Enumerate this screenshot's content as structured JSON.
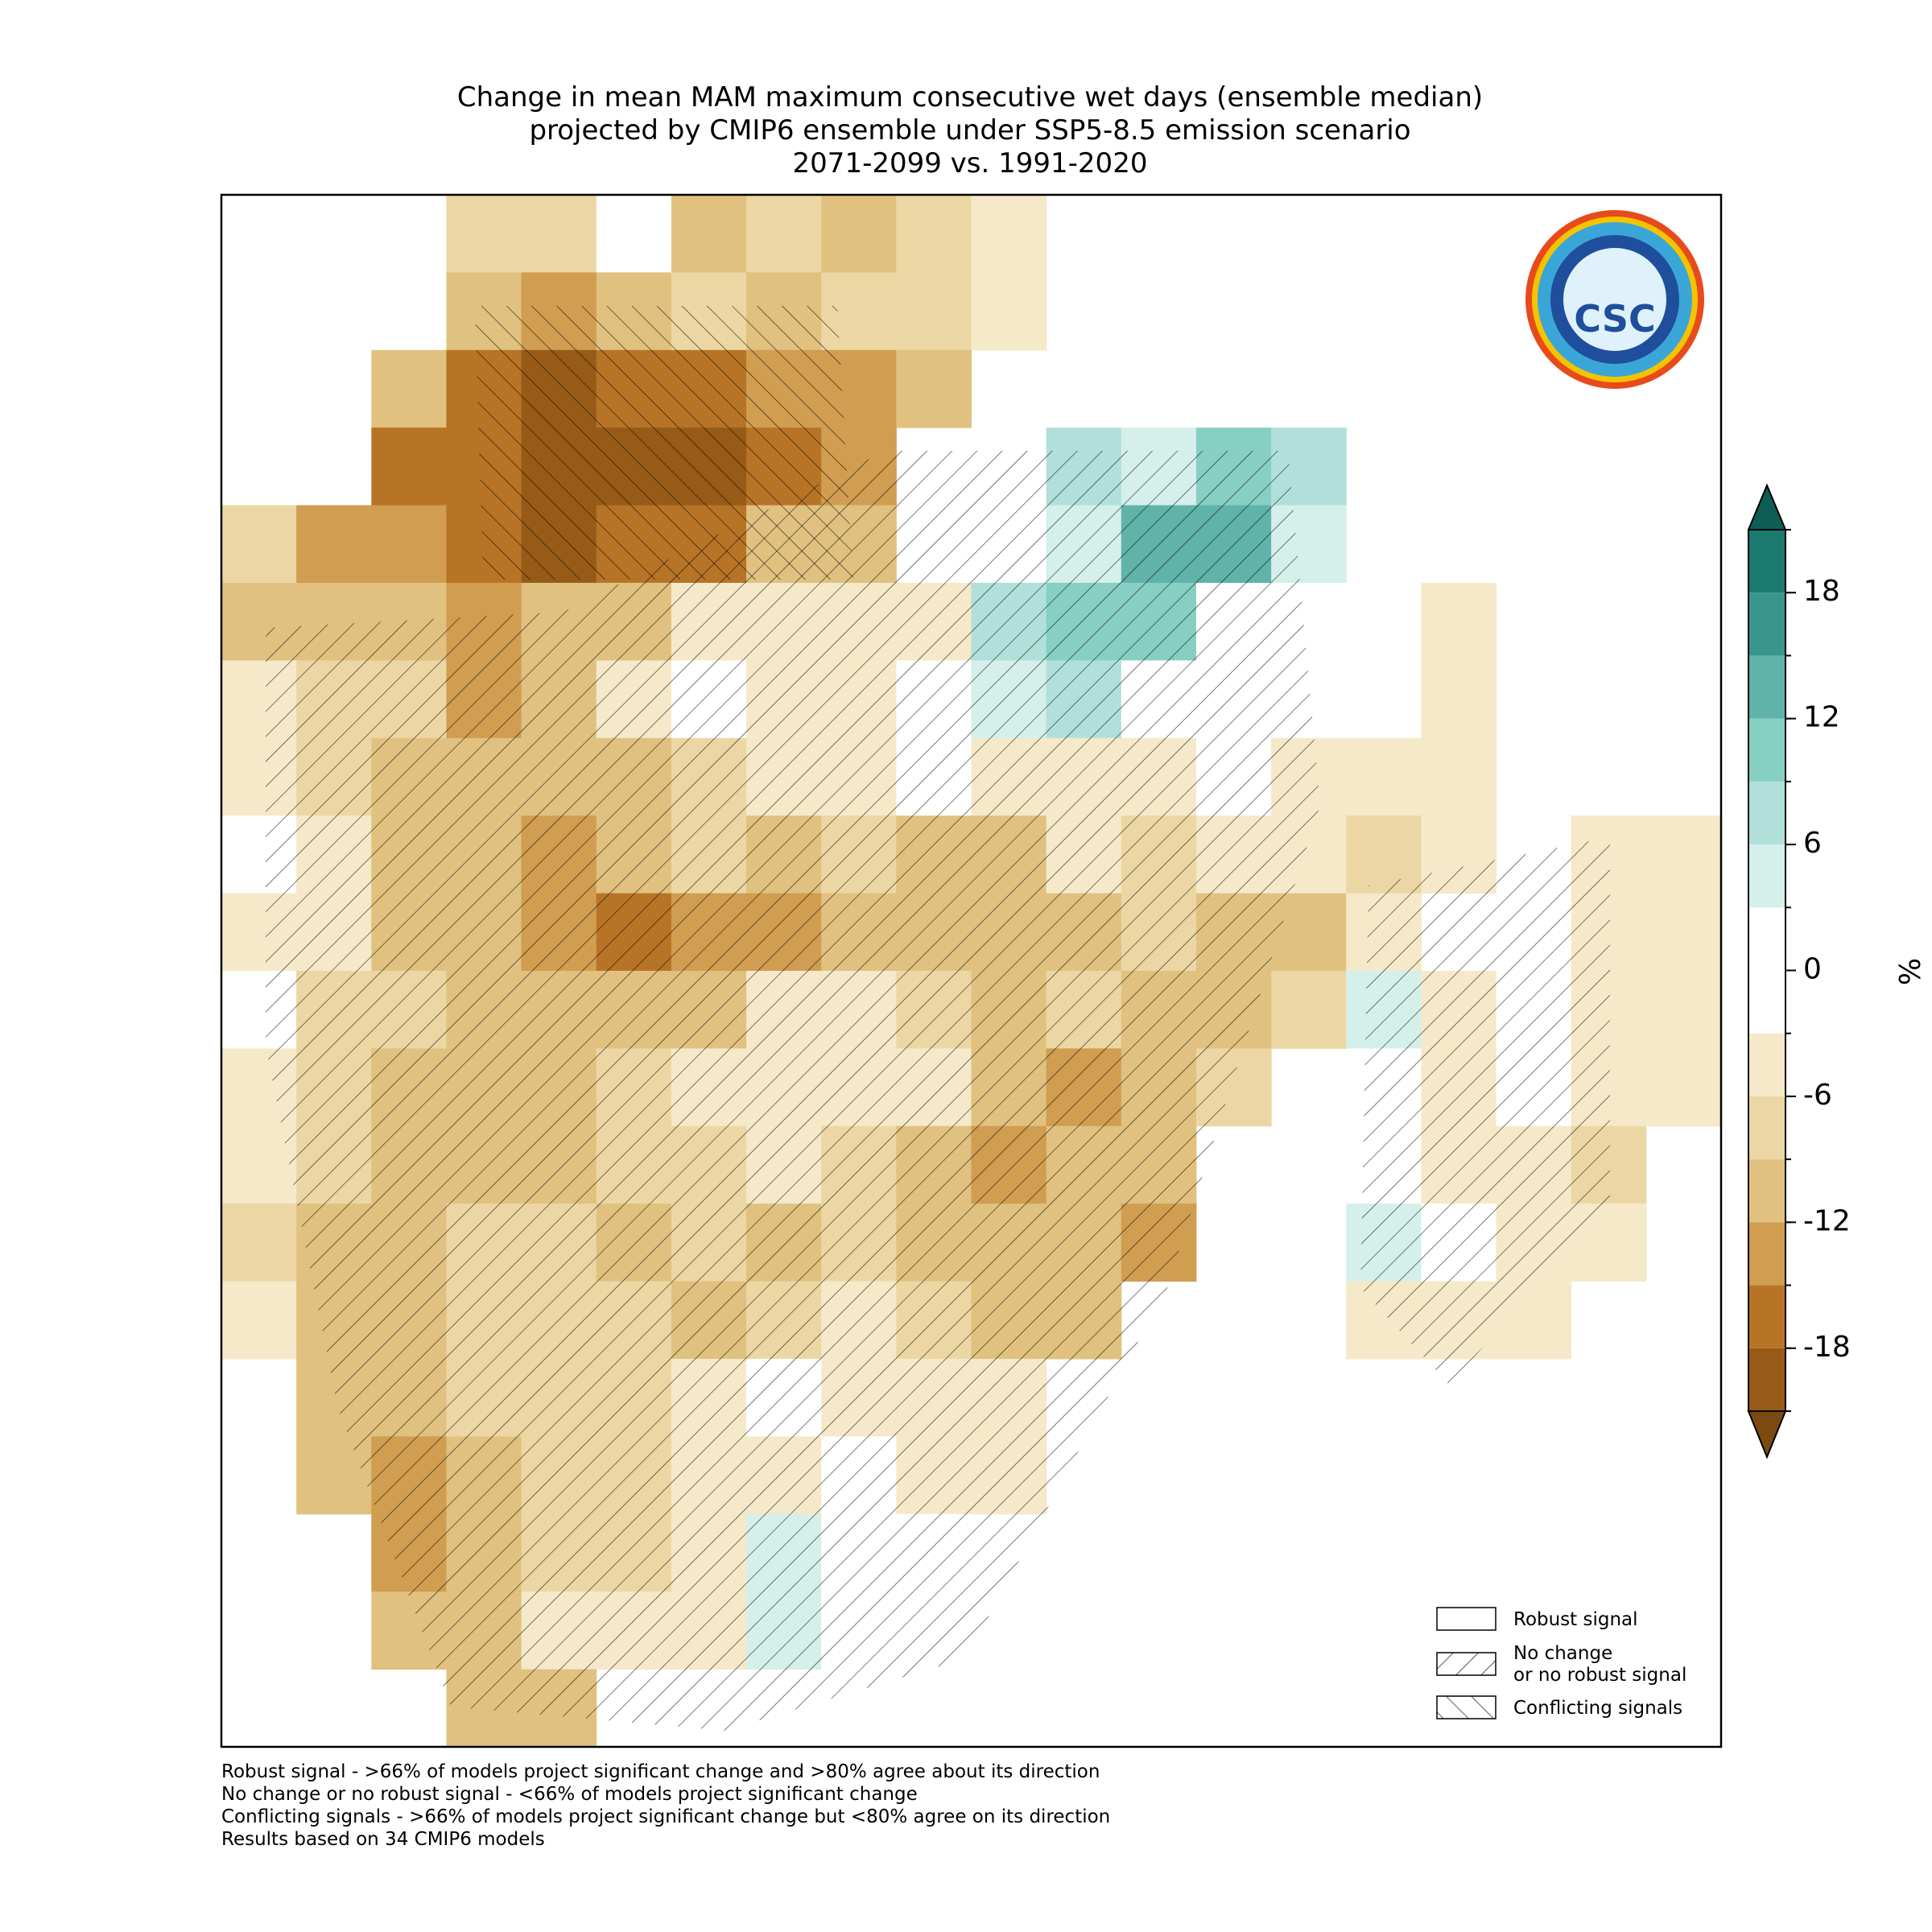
{
  "header": {
    "title": [
      "Change in mean MAM maximum consecutive wet days (ensemble median)",
      "projected by CMIP6 ensemble under SSP5-8.5 emission scenario",
      "2071-2099 vs. 1991-2020"
    ]
  },
  "map": {
    "cells": [
      [
        null,
        null,
        null,
        -8,
        -8,
        -2,
        -10,
        -8,
        -10,
        -8,
        -5,
        null,
        null,
        null,
        null,
        null,
        null,
        null,
        null,
        null
      ],
      [
        null,
        null,
        null,
        -10,
        -14,
        -12,
        -8,
        -10,
        -8,
        -8,
        -5,
        null,
        null,
        null,
        null,
        null,
        null,
        null,
        null,
        null
      ],
      [
        null,
        null,
        -10,
        -18,
        -20,
        -16,
        -18,
        -14,
        -14,
        -10,
        null,
        null,
        null,
        null,
        null,
        null,
        null,
        null,
        null,
        null
      ],
      [
        null,
        null,
        -16,
        -16,
        -20,
        -20,
        -20,
        -16,
        -14,
        null,
        0,
        6,
        3,
        9,
        6,
        null,
        null,
        null,
        null,
        null
      ],
      [
        -8,
        -14,
        -14,
        -16,
        -20,
        -18,
        -16,
        -10,
        -12,
        null,
        0,
        3,
        12,
        12,
        3,
        null,
        null,
        null,
        null,
        null
      ],
      [
        -12,
        -10,
        -12,
        -14,
        -10,
        -12,
        -6,
        -6,
        -6,
        -4,
        6,
        9,
        9,
        0,
        0,
        null,
        -6,
        null,
        null,
        null
      ],
      [
        -4,
        -8,
        -8,
        -14,
        -12,
        -4,
        -2,
        -6,
        -4,
        -2,
        3,
        6,
        0,
        -2,
        0,
        null,
        -6,
        null,
        null,
        null
      ],
      [
        -6,
        -8,
        -10,
        -12,
        -12,
        -10,
        -8,
        -6,
        -4,
        -2,
        -6,
        -6,
        -6,
        -2,
        -4,
        -6,
        -6,
        null,
        null,
        null
      ],
      [
        -2,
        -6,
        -10,
        -12,
        -14,
        -10,
        -8,
        -10,
        -8,
        -12,
        -10,
        -6,
        -8,
        -6,
        -6,
        -8,
        -4,
        null,
        -4,
        -4
      ],
      [
        -6,
        -6,
        -10,
        -12,
        -14,
        -16,
        -14,
        -14,
        -12,
        -10,
        -12,
        -10,
        -8,
        -12,
        -10,
        -6,
        null,
        null,
        -6,
        -6
      ],
      [
        -2,
        -8,
        -8,
        -10,
        -12,
        -12,
        -10,
        -6,
        -6,
        -8,
        -10,
        -8,
        -10,
        -12,
        -8,
        3,
        -4,
        -2,
        -6,
        -4
      ],
      [
        -4,
        -8,
        -10,
        -12,
        -10,
        -8,
        -4,
        -4,
        -6,
        -4,
        -10,
        -14,
        -10,
        -8,
        null,
        -2,
        -6,
        -2,
        -6,
        -6
      ],
      [
        -6,
        -8,
        -10,
        -12,
        -10,
        -8,
        -8,
        -6,
        -8,
        -10,
        -14,
        -12,
        -10,
        null,
        null,
        -2,
        -4,
        -6,
        -8,
        null
      ],
      [
        -8,
        -10,
        -10,
        -8,
        -8,
        -10,
        -8,
        -10,
        -8,
        -10,
        -12,
        -12,
        -14,
        null,
        null,
        3,
        -2,
        -4,
        -4,
        null
      ],
      [
        -6,
        -12,
        -10,
        -8,
        -8,
        -8,
        -10,
        -8,
        -6,
        -8,
        -10,
        -12,
        null,
        null,
        null,
        -4,
        -4,
        -6,
        null,
        null
      ],
      [
        null,
        -10,
        -12,
        -8,
        -8,
        -8,
        -6,
        -2,
        -4,
        -6,
        -6,
        null,
        null,
        null,
        null,
        null,
        null,
        null,
        null,
        null
      ],
      [
        null,
        -10,
        -14,
        -10,
        -8,
        -8,
        -6,
        -4,
        -2,
        -4,
        -4,
        null,
        null,
        null,
        null,
        null,
        null,
        null,
        null,
        null
      ],
      [
        null,
        null,
        -14,
        -12,
        -8,
        -8,
        -4,
        3,
        -2,
        -2,
        null,
        null,
        null,
        null,
        null,
        null,
        null,
        null,
        null,
        null
      ],
      [
        null,
        null,
        -12,
        -10,
        -6,
        -6,
        -4,
        3,
        -2,
        null,
        null,
        null,
        null,
        null,
        null,
        null,
        null,
        null,
        null,
        null
      ],
      [
        null,
        null,
        null,
        -12,
        -10,
        null,
        null,
        null,
        null,
        null,
        null,
        null,
        null,
        null,
        null,
        null,
        null,
        null,
        null,
        null
      ]
    ]
  },
  "colorbar": {
    "bounds": [
      -21,
      -18,
      -15,
      -12,
      -9,
      -6,
      -3,
      0,
      3,
      6,
      9,
      12,
      15,
      18,
      21
    ],
    "colors": [
      "#975b17",
      "#b87426",
      "#d09d51",
      "#e0c17f",
      "#ecd7a4",
      "#f5e9c9",
      "#ffffff",
      "#ffffff",
      "#d5efeb",
      "#b0e0d9",
      "#88cfc3",
      "#5fb3a8",
      "#3a968c",
      "#1c7a70"
    ],
    "under": "#7b4a10",
    "over": "#0f5e56",
    "ticks": [
      -18,
      -12,
      -6,
      0,
      6,
      12,
      18
    ],
    "label": "%"
  },
  "legend": [
    "Robust signal",
    "No change\nor no robust signal",
    "Conflicting signals"
  ],
  "footnotes": [
    "Robust signal - >66% of models project significant change and >80% agree about its direction",
    "No change or no robust signal - <66% of models project significant change",
    "Conflicting signals - >66% of models project significant change but <80% agree on its direction",
    "Results based on 34 CMIP6 models"
  ]
}
